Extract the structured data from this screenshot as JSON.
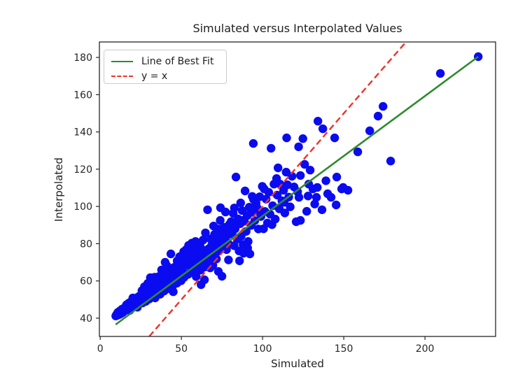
{
  "figure": {
    "background": "#ffffff"
  },
  "chart_data": {
    "type": "scatter",
    "title": "Simulated versus Interpolated Values",
    "xlabel": "Simulated",
    "ylabel": "Interpolated",
    "xlim": [
      -0.5,
      243.5
    ],
    "ylim": [
      30.2,
      188.3
    ],
    "x_ticks": [
      0,
      50,
      100,
      150,
      200
    ],
    "y_ticks": [
      40,
      60,
      80,
      100,
      120,
      140,
      160,
      180
    ],
    "grid": false,
    "axis_color": "#262626",
    "point_color": "#0b0bf0",
    "point_radius": 6.2,
    "legend": {
      "position": "upper left",
      "entries": [
        {
          "label": "Line of Best Fit",
          "color": "#2e8b2e",
          "style": "solid"
        },
        {
          "label": "y = x",
          "color": "#f03228",
          "style": "dashed"
        }
      ]
    },
    "lines": [
      {
        "name": "best-fit",
        "label": "Line of Best Fit",
        "color": "#2e8b2e",
        "style": "solid",
        "width": 2.6,
        "x": [
          9.5,
          232.8
        ],
        "y": [
          36.6,
          180.4
        ]
      },
      {
        "name": "identity",
        "label": "y = x",
        "color": "#f03228",
        "style": "dashed",
        "width": 2.4,
        "x": [
          30.2,
          188.3
        ],
        "y": [
          30.2,
          188.3
        ]
      }
    ],
    "points": [
      [
        9.6,
        41.2
      ],
      [
        10.1,
        42.0
      ],
      [
        10.4,
        41.5
      ],
      [
        10.9,
        43.1
      ],
      [
        11.3,
        41.8
      ],
      [
        11.8,
        42.6
      ],
      [
        12.2,
        44.0
      ],
      [
        12.6,
        42.3
      ],
      [
        13.0,
        43.5
      ],
      [
        13.4,
        44.8
      ],
      [
        13.9,
        43.0
      ],
      [
        14.3,
        45.2
      ],
      [
        14.7,
        43.9
      ],
      [
        15.0,
        44.5
      ],
      [
        15.3,
        45.6
      ],
      [
        15.5,
        44.1
      ],
      [
        15.8,
        46.3
      ],
      [
        16.0,
        44.9
      ],
      [
        16.2,
        47.2
      ],
      [
        16.5,
        45.5
      ],
      [
        16.8,
        46.8
      ],
      [
        17.0,
        44.6
      ],
      [
        17.3,
        47.9
      ],
      [
        17.5,
        46.1
      ],
      [
        17.8,
        45.0
      ],
      [
        18.0,
        48.3
      ],
      [
        18.2,
        44.2
      ],
      [
        18.3,
        46.6
      ],
      [
        18.5,
        47.5
      ],
      [
        18.8,
        45.8
      ],
      [
        19.0,
        48.9
      ],
      [
        19.3,
        47.0
      ],
      [
        19.5,
        46.2
      ],
      [
        19.8,
        49.4
      ],
      [
        20.0,
        47.7
      ],
      [
        20.1,
        50.9
      ],
      [
        20.3,
        46.5
      ],
      [
        20.6,
        49.0
      ],
      [
        20.9,
        48.1
      ],
      [
        21.2,
        46.9
      ],
      [
        21.5,
        50.2
      ],
      [
        21.8,
        48.6
      ],
      [
        22.1,
        47.4
      ],
      [
        22.4,
        50.8
      ],
      [
        22.7,
        49.2
      ],
      [
        22.9,
        45.9
      ],
      [
        23.0,
        48.0
      ],
      [
        23.3,
        51.3
      ],
      [
        23.6,
        49.7
      ],
      [
        23.9,
        48.5
      ],
      [
        24.2,
        51.9
      ],
      [
        24.5,
        50.3
      ],
      [
        24.8,
        49.1
      ],
      [
        25.0,
        52.4
      ],
      [
        25.3,
        52.0
      ],
      [
        25.6,
        50.1
      ],
      [
        25.7,
        54.8
      ],
      [
        25.9,
        53.6
      ],
      [
        26.0,
        48.2
      ],
      [
        26.2,
        51.2
      ],
      [
        26.5,
        49.4
      ],
      [
        26.8,
        54.1
      ],
      [
        27.1,
        52.3
      ],
      [
        27.2,
        56.9
      ],
      [
        27.4,
        50.6
      ],
      [
        27.7,
        55.0
      ],
      [
        28.0,
        53.1
      ],
      [
        28.1,
        49.0
      ],
      [
        28.3,
        51.5
      ],
      [
        28.6,
        55.8
      ],
      [
        28.9,
        53.9
      ],
      [
        29.2,
        52.1
      ],
      [
        29.3,
        58.7
      ],
      [
        29.5,
        56.4
      ],
      [
        29.8,
        54.5
      ],
      [
        30.1,
        52.8
      ],
      [
        30.2,
        50.3
      ],
      [
        30.4,
        57.1
      ],
      [
        30.7,
        55.2
      ],
      [
        30.9,
        61.8
      ],
      [
        31.0,
        53.4
      ],
      [
        31.3,
        57.8
      ],
      [
        31.4,
        60.9
      ],
      [
        31.6,
        56.0
      ],
      [
        31.9,
        54.2
      ],
      [
        32.2,
        58.5
      ],
      [
        32.3,
        51.8
      ],
      [
        32.5,
        56.6
      ],
      [
        32.8,
        54.9
      ],
      [
        33.1,
        59.2
      ],
      [
        33.4,
        57.3
      ],
      [
        33.5,
        62.0
      ],
      [
        33.7,
        55.5
      ],
      [
        33.8,
        50.9
      ],
      [
        34.0,
        59.8
      ],
      [
        34.3,
        58.0
      ],
      [
        34.4,
        53.1
      ],
      [
        34.6,
        56.2
      ],
      [
        34.9,
        60.5
      ],
      [
        35.2,
        60.1
      ],
      [
        35.6,
        57.4
      ],
      [
        36.0,
        62.3
      ],
      [
        36.4,
        59.0
      ],
      [
        36.8,
        55.8
      ],
      [
        36.9,
        52.9
      ],
      [
        37.2,
        62.9
      ],
      [
        37.6,
        60.2
      ],
      [
        37.8,
        65.9
      ],
      [
        38.0,
        57.1
      ],
      [
        38.4,
        63.5
      ],
      [
        38.8,
        60.8
      ],
      [
        39.2,
        58.0
      ],
      [
        39.4,
        54.6
      ],
      [
        39.6,
        64.1
      ],
      [
        40.0,
        70.0
      ],
      [
        40.0,
        61.3
      ],
      [
        40.4,
        58.6
      ],
      [
        40.8,
        64.8
      ],
      [
        41.0,
        68.2
      ],
      [
        41.2,
        62.0
      ],
      [
        41.6,
        59.3
      ],
      [
        42.0,
        65.4
      ],
      [
        42.1,
        55.9
      ],
      [
        42.4,
        62.6
      ],
      [
        42.8,
        59.9
      ],
      [
        43.2,
        66.0
      ],
      [
        43.5,
        74.5
      ],
      [
        43.6,
        63.2
      ],
      [
        44.0,
        60.5
      ],
      [
        44.4,
        66.7
      ],
      [
        44.6,
        57.2
      ],
      [
        44.8,
        63.9
      ],
      [
        45.0,
        54.2
      ],
      [
        45.2,
        61.1
      ],
      [
        45.6,
        67.3
      ],
      [
        46.0,
        64.5
      ],
      [
        46.4,
        61.8
      ],
      [
        46.8,
        67.9
      ],
      [
        47.2,
        65.1
      ],
      [
        47.3,
        58.8
      ],
      [
        47.4,
        70.8
      ],
      [
        47.6,
        62.4
      ],
      [
        48.0,
        68.6
      ],
      [
        48.4,
        65.8
      ],
      [
        48.8,
        63.0
      ],
      [
        48.9,
        73.0
      ],
      [
        49.2,
        69.2
      ],
      [
        49.6,
        66.4
      ],
      [
        49.8,
        60.1
      ],
      [
        50.0,
        63.7
      ],
      [
        50.4,
        66.9
      ],
      [
        50.9,
        70.2
      ],
      [
        51.4,
        75.7
      ],
      [
        51.6,
        61.9
      ],
      [
        51.9,
        64.1
      ],
      [
        52.2,
        74.9
      ],
      [
        52.4,
        68.5
      ],
      [
        52.7,
        72.9
      ],
      [
        52.9,
        76.8
      ],
      [
        53.4,
        71.3
      ],
      [
        53.9,
        68.9
      ],
      [
        54.1,
        63.5
      ],
      [
        54.4,
        79.1
      ],
      [
        54.9,
        69.7
      ],
      [
        55.4,
        73.4
      ],
      [
        55.7,
        77.8
      ],
      [
        55.9,
        67.2
      ],
      [
        56.4,
        80.3
      ],
      [
        56.6,
        64.7
      ],
      [
        56.9,
        71.9
      ],
      [
        57.4,
        75.5
      ],
      [
        57.9,
        68.4
      ],
      [
        58.4,
        76.2
      ],
      [
        58.7,
        81.2
      ],
      [
        58.9,
        72.6
      ],
      [
        59.1,
        62.3
      ],
      [
        59.4,
        66.8
      ],
      [
        59.6,
        80.5
      ],
      [
        59.9,
        78.0
      ],
      [
        60.4,
        73.8
      ],
      [
        60.9,
        69.5
      ],
      [
        61.4,
        79.4
      ],
      [
        61.6,
        65.8
      ],
      [
        61.9,
        74.9
      ],
      [
        62.1,
        58.0
      ],
      [
        62.4,
        77.1
      ],
      [
        62.9,
        71.0
      ],
      [
        63.4,
        82.0
      ],
      [
        64.2,
        60.6
      ],
      [
        63.9,
        76.1
      ],
      [
        64.1,
        67.4
      ],
      [
        64.8,
        85.8
      ],
      [
        64.9,
        72.4
      ],
      [
        65.5,
        73.7
      ],
      [
        65.9,
        69.8
      ],
      [
        66.1,
        98.2
      ],
      [
        66.7,
        77.2
      ],
      [
        67.3,
        70.4
      ],
      [
        67.7,
        67.0
      ],
      [
        68.0,
        82.5
      ],
      [
        68.5,
        78.9
      ],
      [
        69.1,
        74.2
      ],
      [
        69.4,
        68.3
      ],
      [
        69.8,
        89.5
      ],
      [
        70.4,
        85.0
      ],
      [
        70.7,
        81.3
      ],
      [
        71.0,
        76.3
      ],
      [
        71.6,
        71.8
      ],
      [
        72.2,
        83.4
      ],
      [
        72.5,
        75.9
      ],
      [
        72.8,
        65.1
      ],
      [
        73.0,
        87.9
      ],
      [
        73.4,
        79.0
      ],
      [
        73.9,
        92.5
      ],
      [
        74.1,
        99.3
      ],
      [
        74.7,
        85.2
      ],
      [
        75.0,
        62.5
      ],
      [
        75.5,
        78.4
      ],
      [
        75.7,
        84.3
      ],
      [
        75.9,
        81.7
      ],
      [
        76.3,
        88.8
      ],
      [
        77.2,
        97.0
      ],
      [
        77.8,
        76.8
      ],
      [
        78.1,
        88.1
      ],
      [
        78.4,
        84.6
      ],
      [
        78.8,
        80.2
      ],
      [
        79.0,
        71.3
      ],
      [
        79.6,
        90.4
      ],
      [
        79.9,
        86.0
      ],
      [
        80.6,
        91.8
      ],
      [
        81.2,
        85.3
      ],
      [
        81.3,
        90.6
      ],
      [
        81.9,
        96.3
      ],
      [
        82.5,
        78.9
      ],
      [
        82.6,
        99.2
      ],
      [
        83.1,
        88.0
      ],
      [
        83.6,
        115.8
      ],
      [
        84.3,
        82.4
      ],
      [
        84.9,
        93.3
      ],
      [
        85.5,
        76.1
      ],
      [
        85.8,
        70.8
      ],
      [
        86.2,
        90.7
      ],
      [
        86.5,
        101.9
      ],
      [
        86.8,
        84.0
      ],
      [
        87.4,
        97.8
      ],
      [
        87.8,
        92.5
      ],
      [
        88.0,
        79.5
      ],
      [
        88.3,
        74.9
      ],
      [
        88.7,
        92.1
      ],
      [
        89.2,
        108.3
      ],
      [
        89.9,
        86.6
      ],
      [
        90.5,
        95.0
      ],
      [
        90.8,
        77.6
      ],
      [
        91.1,
        81.2
      ],
      [
        91.8,
        99.6
      ],
      [
        92.2,
        74.5
      ],
      [
        92.7,
        96.8
      ],
      [
        93.0,
        89.8
      ],
      [
        93.6,
        105.4
      ],
      [
        94.3,
        133.8
      ],
      [
        94.4,
        103.8
      ],
      [
        95.2,
        92.4
      ],
      [
        96.0,
        101.7
      ],
      [
        96.6,
        99.3
      ],
      [
        97.4,
        87.9
      ],
      [
        97.8,
        96.9
      ],
      [
        98.2,
        105.2
      ],
      [
        99.0,
        94.6
      ],
      [
        99.8,
        110.8
      ],
      [
        100.6,
        88.0
      ],
      [
        101.0,
        109.4
      ],
      [
        101.4,
        97.3
      ],
      [
        102.2,
        103.9
      ],
      [
        103.0,
        91.1
      ],
      [
        103.8,
        107.6
      ],
      [
        104.6,
        95.8
      ],
      [
        105.2,
        131.2
      ],
      [
        105.8,
        90.2
      ],
      [
        106.2,
        100.4
      ],
      [
        107.0,
        112.0
      ],
      [
        107.8,
        93.2
      ],
      [
        108.6,
        115.0
      ],
      [
        109.0,
        106.1
      ],
      [
        109.5,
        120.7
      ],
      [
        110.3,
        98.7
      ],
      [
        110.8,
        112.0
      ],
      [
        111.9,
        103.1
      ],
      [
        112.9,
        108.7
      ],
      [
        113.3,
        102.2
      ],
      [
        113.7,
        96.5
      ],
      [
        114.5,
        118.4
      ],
      [
        114.8,
        136.8
      ],
      [
        115.3,
        111.6
      ],
      [
        116.1,
        105.0
      ],
      [
        117.0,
        99.8
      ],
      [
        118.1,
        116.2
      ],
      [
        119.4,
        110.5
      ],
      [
        120.7,
        91.8
      ],
      [
        121.6,
        107.9
      ],
      [
        122.2,
        132.0
      ],
      [
        122.4,
        104.9
      ],
      [
        123.3,
        92.5
      ],
      [
        123.3,
        116.6
      ],
      [
        124.8,
        136.4
      ],
      [
        125.9,
        122.6
      ],
      [
        127.2,
        97.4
      ],
      [
        128.0,
        105.6
      ],
      [
        128.4,
        112.0
      ],
      [
        129.3,
        119.5
      ],
      [
        131.0,
        109.4
      ],
      [
        132.1,
        101.3
      ],
      [
        133.2,
        104.9
      ],
      [
        133.7,
        110.2
      ],
      [
        134.1,
        145.8
      ],
      [
        136.6,
        98.2
      ],
      [
        137.1,
        141.7
      ],
      [
        139.0,
        113.8
      ],
      [
        140.1,
        106.8
      ],
      [
        142.2,
        104.9
      ],
      [
        144.4,
        136.8
      ],
      [
        145.3,
        100.8
      ],
      [
        145.7,
        115.8
      ],
      [
        148.7,
        109.4
      ],
      [
        149.6,
        110.2
      ],
      [
        152.6,
        108.7
      ],
      [
        158.6,
        129.3
      ],
      [
        166.0,
        140.6
      ],
      [
        171.1,
        148.5
      ],
      [
        174.2,
        153.7
      ],
      [
        178.9,
        124.4
      ],
      [
        209.5,
        171.4
      ],
      [
        232.8,
        180.4
      ]
    ]
  }
}
